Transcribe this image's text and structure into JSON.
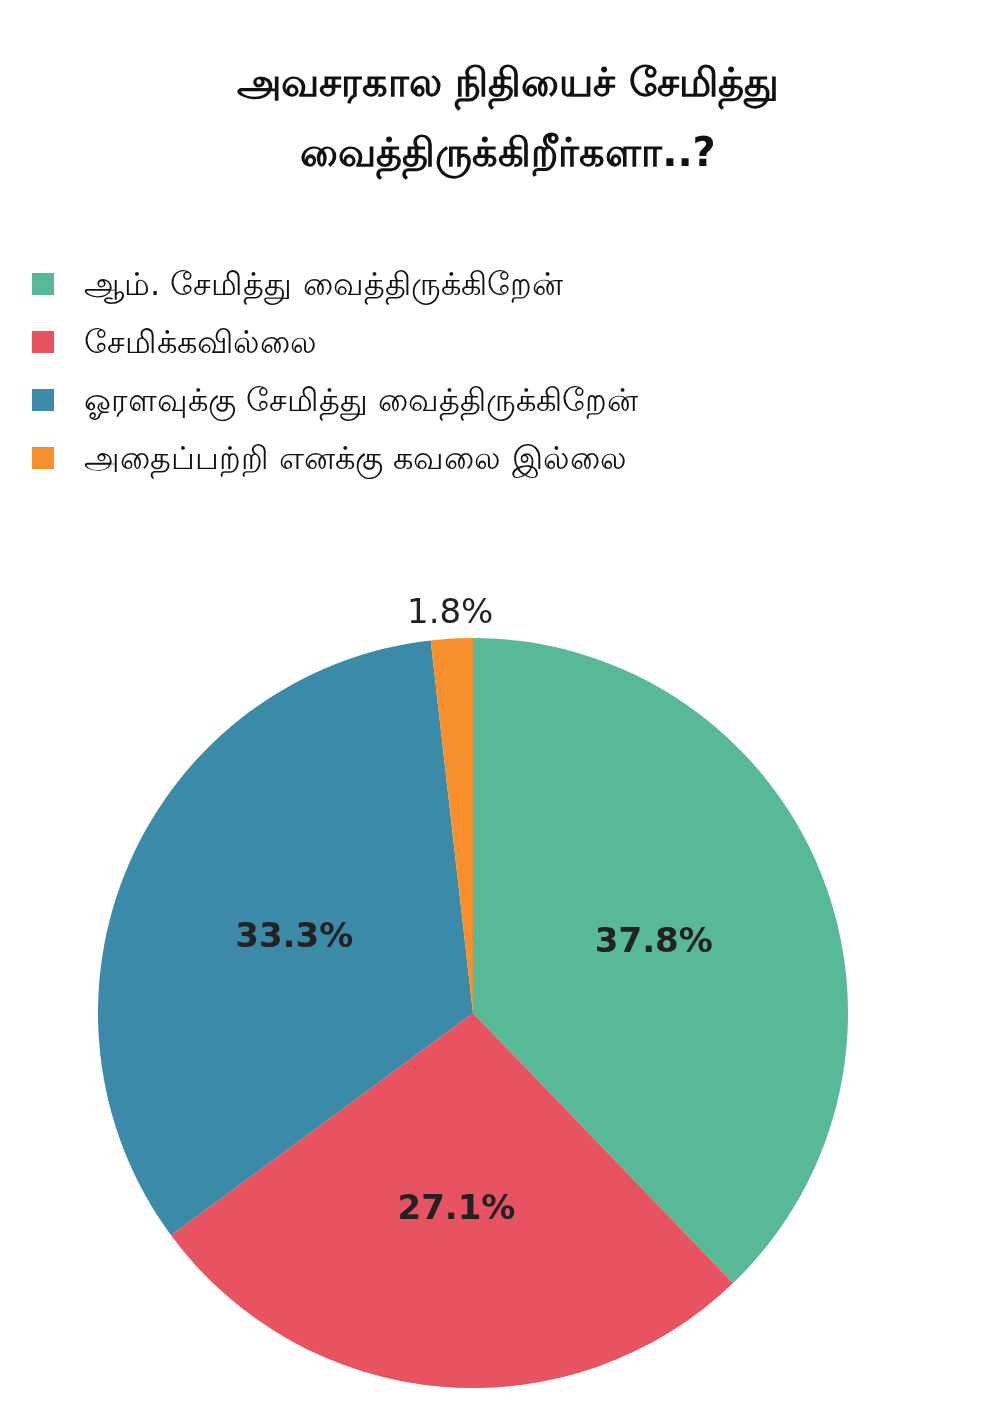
{
  "chart_data": {
    "type": "pie",
    "title": "அவசரகால நிதியைச் சேமித்து வைத்திருக்கிறீர்களா..?",
    "categories": [
      "ஆம். சேமித்து வைத்திருக்கிறேன்",
      "சேமிக்கவில்லை",
      "ஓரளவுக்கு சேமித்து வைத்திருக்கிறேன்",
      "அதைப்பற்றி எனக்கு கவலை இல்லை"
    ],
    "values": [
      37.8,
      27.1,
      33.3,
      1.8
    ],
    "value_labels": [
      "37.8%",
      "27.1%",
      "33.3%",
      "1.8%"
    ],
    "colors": [
      "#58b997",
      "#e85361",
      "#3a8aa8",
      "#f78f2c"
    ],
    "legend": "top left"
  }
}
